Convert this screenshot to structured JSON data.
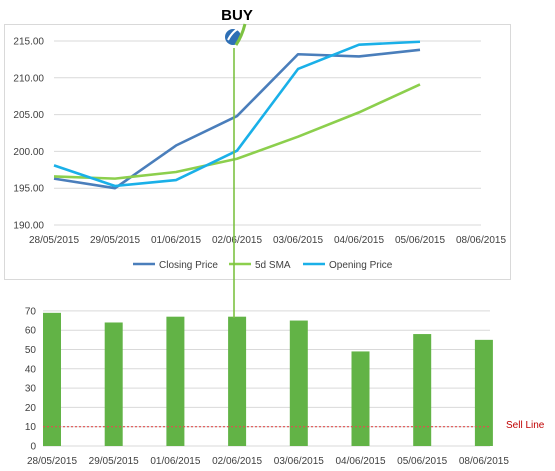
{
  "annotations": {
    "buy_label": "BUY",
    "buy_marker_icon": "buy-signal-logo-icon",
    "buy_marker_color": "#7dc242",
    "sell_line_label": "Sell Line",
    "sell_line_color": "#e05050"
  },
  "chart_data": [
    {
      "type": "line",
      "x": [
        "28/05/2015",
        "29/05/2015",
        "01/06/2015",
        "02/06/2015",
        "03/06/2015",
        "04/06/2015",
        "05/06/2015",
        "08/06/2015"
      ],
      "series": [
        {
          "name": "Closing Price",
          "color": "#4a7ebb",
          "values": [
            196.3,
            195.0,
            200.8,
            204.8,
            213.2,
            212.9,
            213.8,
            null
          ]
        },
        {
          "name": "5d SMA",
          "color": "#8ccf4d",
          "values": [
            196.6,
            196.3,
            197.2,
            199.0,
            202.0,
            205.3,
            209.1,
            null
          ]
        },
        {
          "name": "Opening Price",
          "color": "#1ab0e8",
          "values": [
            198.1,
            195.3,
            196.1,
            200.1,
            211.2,
            214.5,
            214.9,
            null
          ]
        }
      ],
      "ylim": [
        190,
        215
      ],
      "yticks": [
        "190.00",
        "195.00",
        "200.00",
        "205.00",
        "210.00",
        "215.00"
      ],
      "grid": true,
      "legend": "bottom",
      "buy_signal_at": "02/06/2015"
    },
    {
      "type": "bar",
      "categories": [
        "28/05/2015",
        "29/05/2015",
        "01/06/2015",
        "02/06/2015",
        "03/06/2015",
        "04/06/2015",
        "05/06/2015",
        "08/06/2015"
      ],
      "series": [
        {
          "color": "#62b346",
          "values": [
            69,
            64,
            67,
            67,
            65,
            49,
            58,
            55
          ]
        }
      ],
      "ylim": [
        0,
        70
      ],
      "yticks": [
        "0",
        "10",
        "20",
        "30",
        "40",
        "50",
        "60",
        "70"
      ],
      "grid": true,
      "sell_line_value": 10
    }
  ]
}
